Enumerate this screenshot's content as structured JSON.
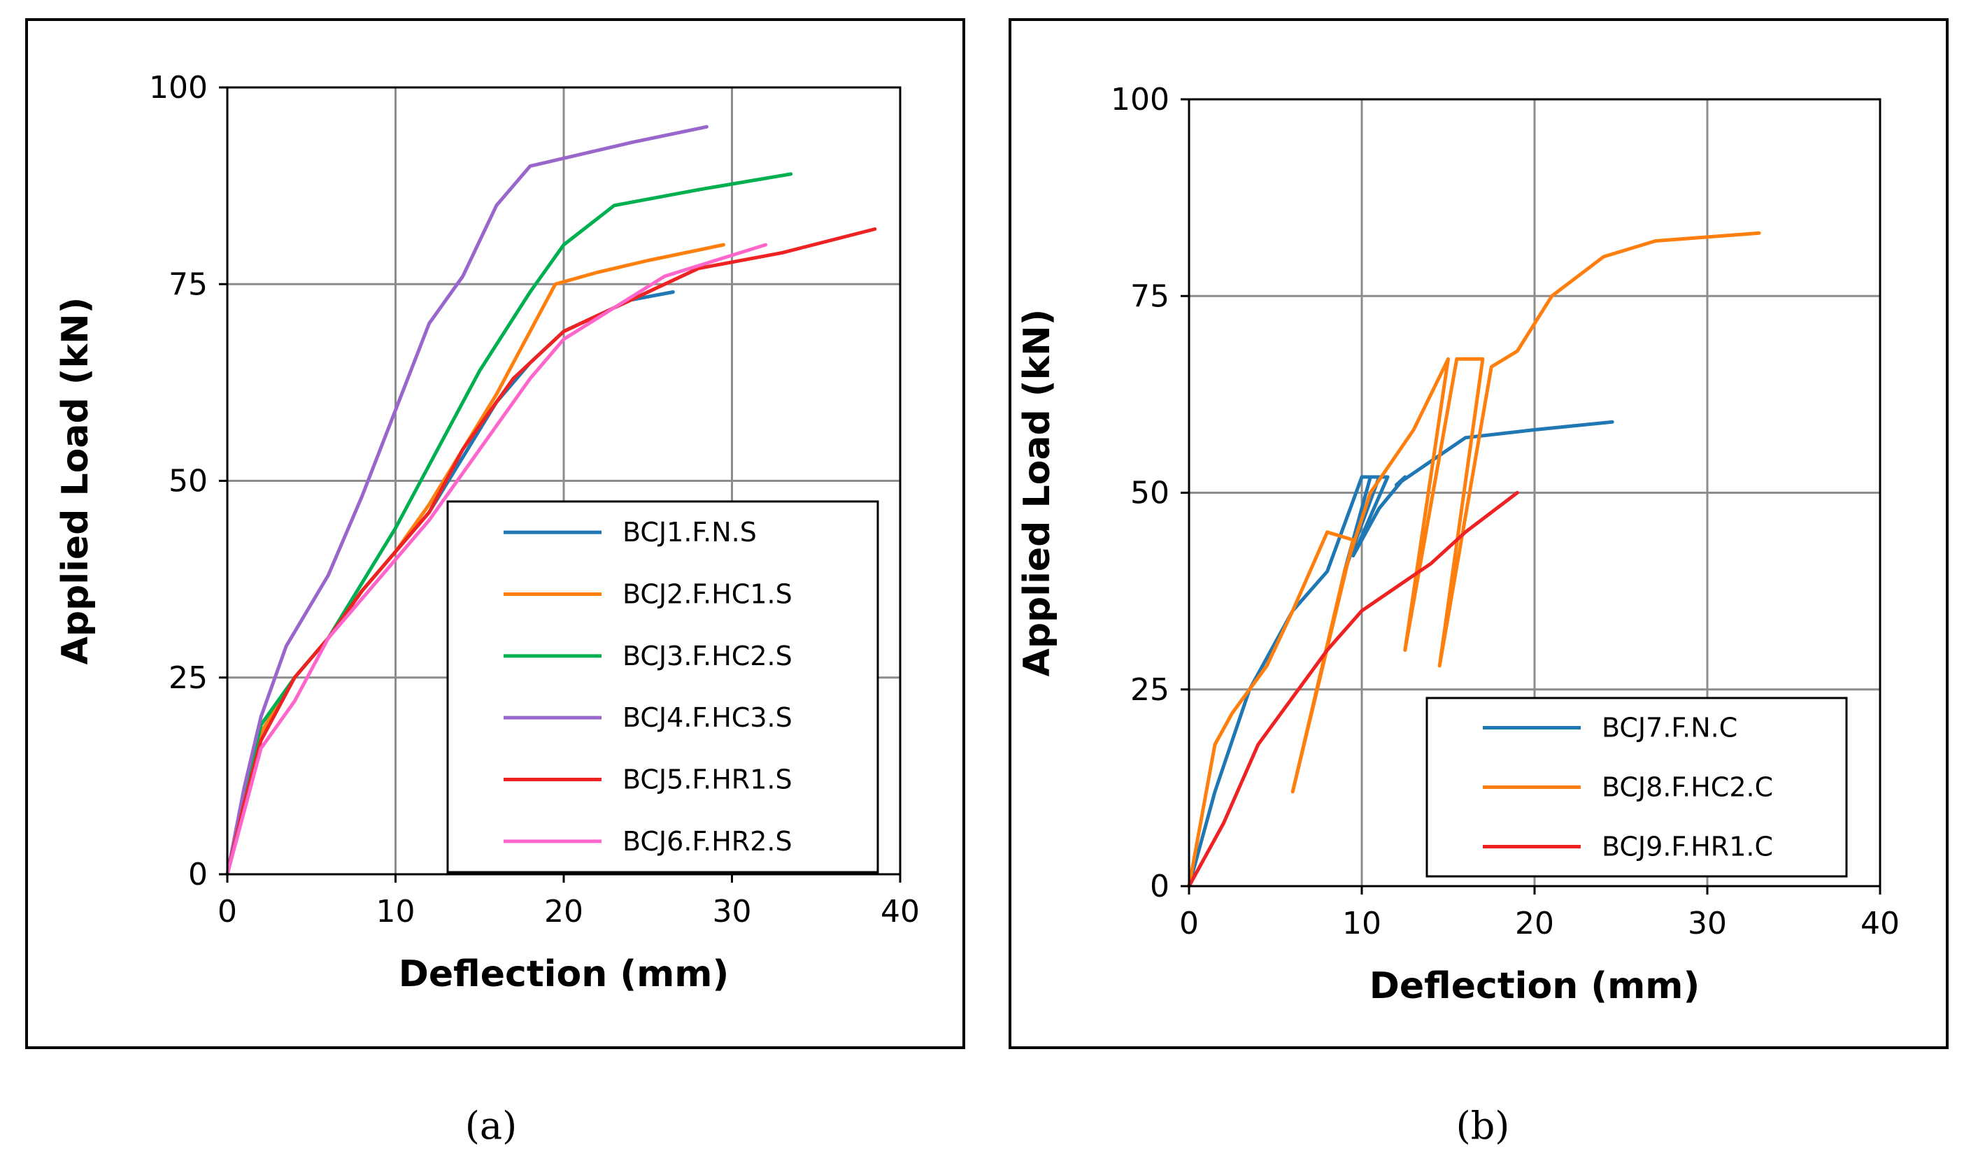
{
  "chart_data": [
    {
      "type": "line",
      "panel_label": "(a)",
      "xlabel": "Deflection (mm)",
      "ylabel": "Applied Load (kN)",
      "xlim": [
        0,
        40
      ],
      "ylim": [
        0,
        100
      ],
      "xticks": [
        "0",
        "10",
        "20",
        "30",
        "40"
      ],
      "yticks": [
        "0",
        "25",
        "50",
        "75",
        "100"
      ],
      "grid": true,
      "legend_position": "bottom-right",
      "series": [
        {
          "name": "BCJ1.F.N.S",
          "color": "#1f77b4",
          "x": [
            0,
            1,
            2,
            4,
            6,
            8,
            10,
            12,
            14,
            16,
            18,
            20,
            22,
            24,
            26.5
          ],
          "y": [
            0,
            10,
            18,
            25,
            30,
            36,
            41,
            46,
            53,
            60,
            65,
            69,
            71,
            73,
            74
          ]
        },
        {
          "name": "BCJ2.F.HC1.S",
          "color": "#ff7f0e",
          "x": [
            0,
            1,
            2,
            4,
            6,
            8,
            10,
            12,
            14,
            16,
            18,
            19.5,
            22,
            25,
            29.5
          ],
          "y": [
            0,
            10,
            18,
            25,
            30,
            36,
            41,
            47,
            54,
            61,
            69,
            75,
            76.5,
            78,
            80
          ]
        },
        {
          "name": "BCJ3.F.HC2.S",
          "color": "#00b050",
          "x": [
            0,
            1,
            2,
            4,
            6,
            8,
            10,
            12,
            15,
            18,
            20,
            23,
            28,
            33.5
          ],
          "y": [
            0,
            10,
            19,
            25,
            30,
            37,
            44,
            52,
            64,
            74,
            80,
            85,
            87,
            89
          ]
        },
        {
          "name": "BCJ4.F.HC3.S",
          "color": "#9966cc",
          "x": [
            0,
            1,
            2,
            3.5,
            6,
            8,
            10,
            12,
            14,
            16,
            18,
            20,
            24,
            28.5
          ],
          "y": [
            0,
            11,
            20,
            29,
            38,
            48,
            59,
            70,
            76,
            85,
            90,
            91,
            93,
            95
          ]
        },
        {
          "name": "BCJ5.F.HR1.S",
          "color": "#ee2222",
          "x": [
            0,
            1,
            2,
            4,
            6,
            8,
            10,
            12,
            14,
            17,
            20,
            24,
            28,
            33,
            38.5
          ],
          "y": [
            0,
            9,
            17,
            25,
            30,
            36,
            41,
            46,
            54,
            63,
            69,
            73,
            77,
            79,
            82
          ]
        },
        {
          "name": "BCJ6.F.HR2.S",
          "color": "#ff66cc",
          "x": [
            0,
            1,
            2,
            4,
            6,
            8,
            10,
            12,
            15,
            18,
            20,
            23,
            26,
            29,
            32
          ],
          "y": [
            0,
            8,
            16,
            22,
            30,
            35,
            40,
            45,
            54,
            63,
            68,
            72,
            76,
            78,
            80
          ]
        }
      ]
    },
    {
      "type": "line",
      "panel_label": "(b)",
      "xlabel": "Deflection (mm)",
      "ylabel": "Applied Load (kN)",
      "xlim": [
        0,
        40
      ],
      "ylim": [
        0,
        100
      ],
      "xticks": [
        "0",
        "10",
        "20",
        "30",
        "40"
      ],
      "yticks": [
        "0",
        "25",
        "50",
        "75",
        "100"
      ],
      "grid": true,
      "legend_position": "bottom-right",
      "series": [
        {
          "name": "BCJ7.F.N.C",
          "color": "#1f77b4",
          "x": [
            0,
            1.5,
            3.5,
            6,
            8,
            10,
            11,
            9,
            10.5,
            11.5,
            9.5,
            11,
            12.5,
            12,
            14,
            16,
            20,
            24.5
          ],
          "y": [
            0,
            12,
            25,
            35,
            40,
            52,
            52,
            40,
            52,
            52,
            42,
            48,
            52,
            51,
            54,
            57,
            58,
            59
          ]
        },
        {
          "name": "BCJ8.F.HC2.C",
          "color": "#ff7f0e",
          "x": [
            0,
            1.5,
            2.5,
            4.5,
            6,
            8,
            9.5,
            6,
            9,
            10.5,
            13,
            15,
            12.5,
            15.5,
            17,
            14.5,
            17.5,
            19,
            21,
            24,
            27,
            33
          ],
          "y": [
            0,
            18,
            22,
            28,
            35,
            45,
            44,
            12,
            40,
            50,
            58,
            67,
            30,
            67,
            67,
            28,
            66,
            68,
            75,
            80,
            82,
            83
          ]
        },
        {
          "name": "BCJ9.F.HR1.C",
          "color": "#ee2222",
          "x": [
            0,
            2,
            4,
            6,
            8,
            10,
            12,
            14,
            16,
            19
          ],
          "y": [
            0,
            8,
            18,
            24,
            30,
            35,
            38,
            41,
            45,
            50
          ]
        }
      ]
    }
  ]
}
